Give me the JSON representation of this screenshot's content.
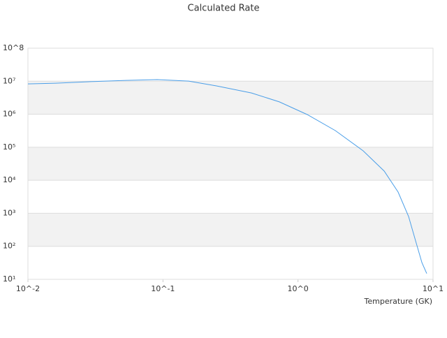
{
  "chart_data": {
    "type": "line",
    "title": "Calculated Rate",
    "x_label": "Temperature (GK)",
    "log_x": true,
    "log_y": true,
    "bands": true,
    "x": [
      0.01,
      0.0161,
      0.0292,
      0.053,
      0.0906,
      0.155,
      0.249,
      0.452,
      0.728,
      1.17,
      1.89,
      3.04,
      4.35,
      5.51,
      6.59,
      7.43,
      8.27,
      8.98
    ],
    "series": [
      {
        "name": "Rate",
        "color": "#4a9ee8",
        "values": [
          8300000,
          8700000,
          9700000,
          10600000,
          11200000,
          10100000,
          7200000,
          4400000,
          2360000,
          980000,
          320000,
          78000,
          19000,
          4400,
          800,
          145,
          32,
          15
        ]
      }
    ],
    "xlim": [
      0.01,
      10
    ],
    "xticks": [
      {
        "value": 0.01,
        "label": "10^-2"
      },
      {
        "value": 0.1,
        "label": "10^-1"
      },
      {
        "value": 1,
        "label": "10^0"
      },
      {
        "value": 10,
        "label": "10^1"
      }
    ],
    "ylim": [
      10,
      100000000
    ],
    "yticks": [
      {
        "value": 10,
        "label": "10¹"
      },
      {
        "value": 100,
        "label": "10²"
      },
      {
        "value": 1000,
        "label": "10³"
      },
      {
        "value": 10000,
        "label": "10⁴"
      },
      {
        "value": 100000,
        "label": "10⁵"
      },
      {
        "value": 1000000,
        "label": "10⁶"
      },
      {
        "value": 10000000,
        "label": "10⁷"
      },
      {
        "value": 100000000,
        "label": "10^8"
      }
    ]
  }
}
